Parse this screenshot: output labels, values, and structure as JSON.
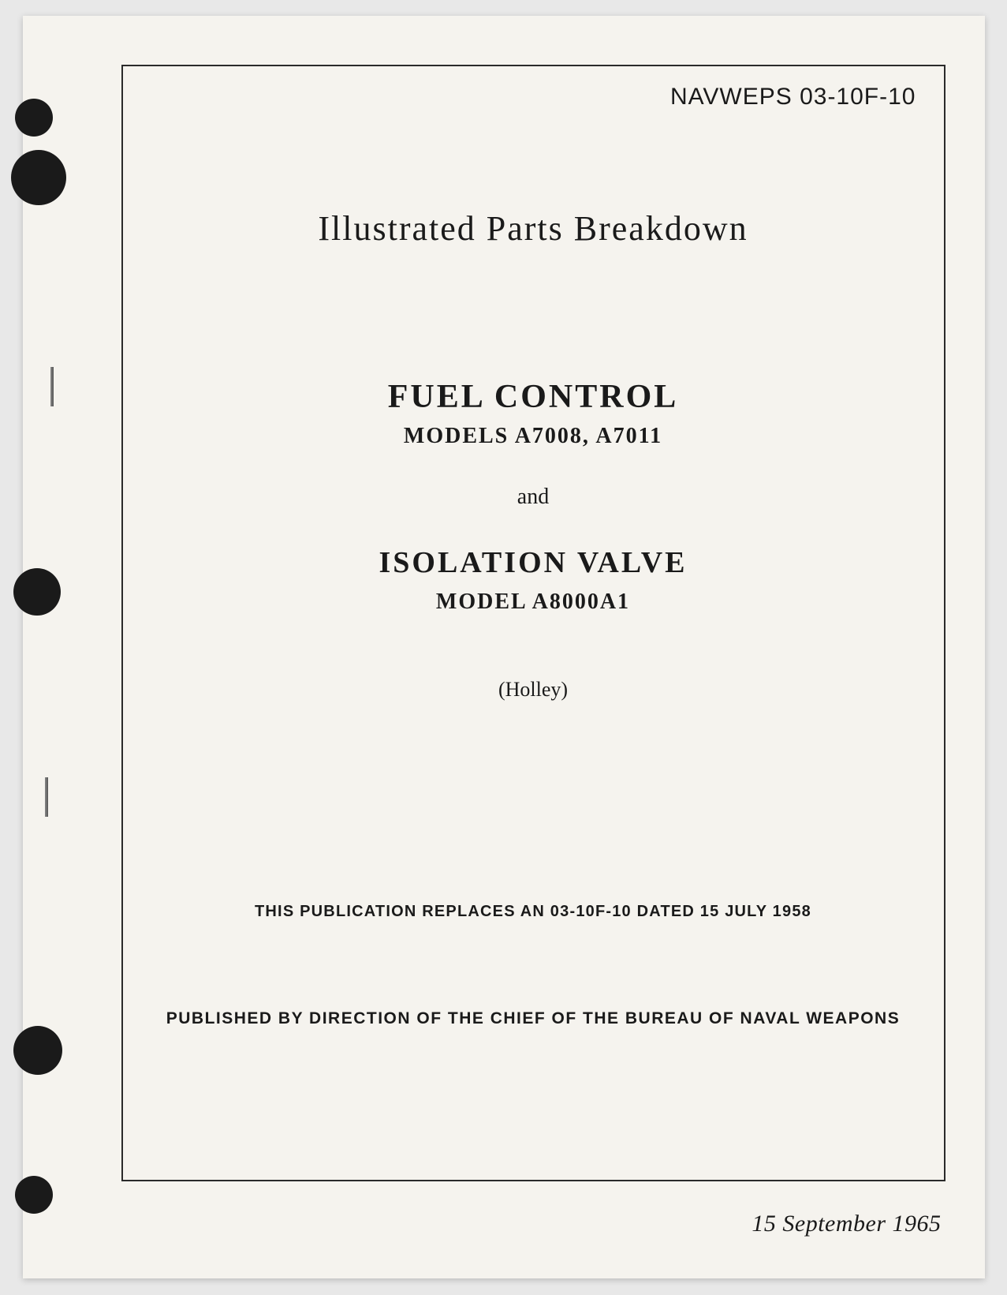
{
  "document": {
    "doc_number": "NAVWEPS 03-10F-10",
    "main_title": "Illustrated Parts Breakdown",
    "subject_1_title": "FUEL CONTROL",
    "subject_1_models": "MODELS A7008, A7011",
    "conjunction": "and",
    "subject_2_title": "ISOLATION VALVE",
    "subject_2_models": "MODEL A8000A1",
    "manufacturer": "(Holley)",
    "replaces_notice": "THIS PUBLICATION REPLACES AN 03-10F-10 DATED 15 JULY 1958",
    "published_by": "PUBLISHED BY DIRECTION OF THE CHIEF OF THE BUREAU OF NAVAL WEAPONS",
    "date": "15 September 1965"
  },
  "styling": {
    "page_bg": "#f5f3ee",
    "text_color": "#1a1a1a",
    "border_color": "#2a2a2a",
    "hole_color": "#1a1a1a",
    "main_title_fontsize": 44,
    "subject_title_fontsize": 42,
    "models_fontsize": 28,
    "footer_fontsize": 20,
    "date_fontsize": 30,
    "frame_border_width": 2
  }
}
